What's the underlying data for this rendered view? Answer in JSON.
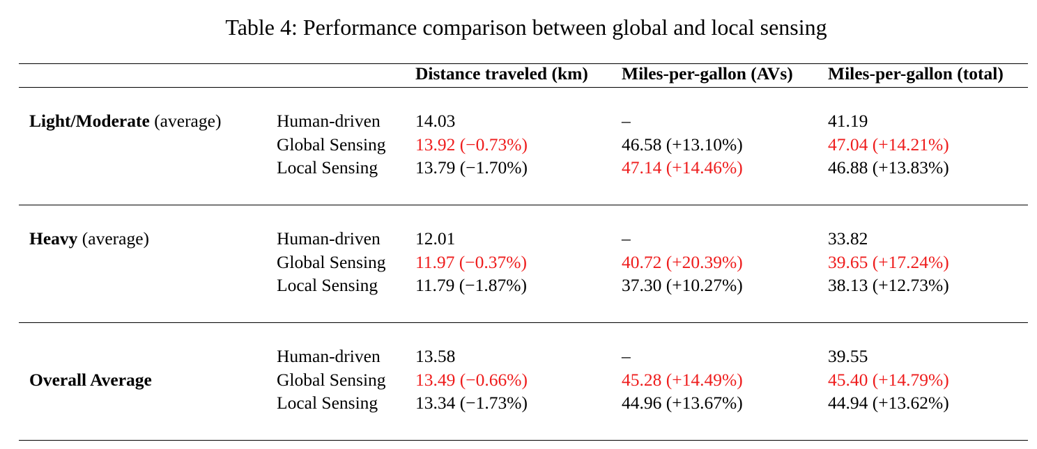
{
  "table": {
    "caption": "Table 4: Performance comparison between global and local sensing",
    "columns": [
      "Distance traveled (km)",
      "Miles-per-gallon (AVs)",
      "Miles-per-gallon (total)"
    ],
    "highlight_color": "#ee1c1c",
    "groups": [
      {
        "label_bold": "Light/Moderate",
        "label_rest": " (average)",
        "rows": [
          {
            "method": "Human-driven",
            "cells": [
              {
                "text": "14.03",
                "highlight": false
              },
              {
                "text": "–",
                "highlight": false
              },
              {
                "text": "41.19",
                "highlight": false
              }
            ]
          },
          {
            "method": "Global Sensing",
            "cells": [
              {
                "text": "13.92 (−0.73%)",
                "highlight": true
              },
              {
                "text": "46.58 (+13.10%)",
                "highlight": false
              },
              {
                "text": "47.04 (+14.21%)",
                "highlight": true
              }
            ]
          },
          {
            "method": "Local Sensing",
            "cells": [
              {
                "text": "13.79 (−1.70%)",
                "highlight": false
              },
              {
                "text": "47.14 (+14.46%)",
                "highlight": true
              },
              {
                "text": "46.88 (+13.83%)",
                "highlight": false
              }
            ]
          }
        ]
      },
      {
        "label_bold": "Heavy",
        "label_rest": " (average)",
        "rows": [
          {
            "method": "Human-driven",
            "cells": [
              {
                "text": "12.01",
                "highlight": false
              },
              {
                "text": "–",
                "highlight": false
              },
              {
                "text": "33.82",
                "highlight": false
              }
            ]
          },
          {
            "method": "Global Sensing",
            "cells": [
              {
                "text": "11.97 (−0.37%)",
                "highlight": true
              },
              {
                "text": "40.72 (+20.39%)",
                "highlight": true
              },
              {
                "text": "39.65 (+17.24%)",
                "highlight": true
              }
            ]
          },
          {
            "method": "Local Sensing",
            "cells": [
              {
                "text": "11.79 (−1.87%)",
                "highlight": false
              },
              {
                "text": "37.30 (+10.27%)",
                "highlight": false
              },
              {
                "text": "38.13 (+12.73%)",
                "highlight": false
              }
            ]
          }
        ]
      },
      {
        "label_bold": "Overall Average",
        "label_rest": "",
        "rows": [
          {
            "method": "Human-driven",
            "cells": [
              {
                "text": "13.58",
                "highlight": false
              },
              {
                "text": "–",
                "highlight": false
              },
              {
                "text": "39.55",
                "highlight": false
              }
            ]
          },
          {
            "method": "Global Sensing",
            "cells": [
              {
                "text": "13.49 (−0.66%)",
                "highlight": true
              },
              {
                "text": "45.28 (+14.49%)",
                "highlight": true
              },
              {
                "text": "45.40 (+14.79%)",
                "highlight": true
              }
            ]
          },
          {
            "method": "Local Sensing",
            "cells": [
              {
                "text": "13.34 (−1.73%)",
                "highlight": false
              },
              {
                "text": "44.96 (+13.67%)",
                "highlight": false
              },
              {
                "text": "44.94 (+13.62%)",
                "highlight": false
              }
            ]
          }
        ]
      }
    ]
  }
}
